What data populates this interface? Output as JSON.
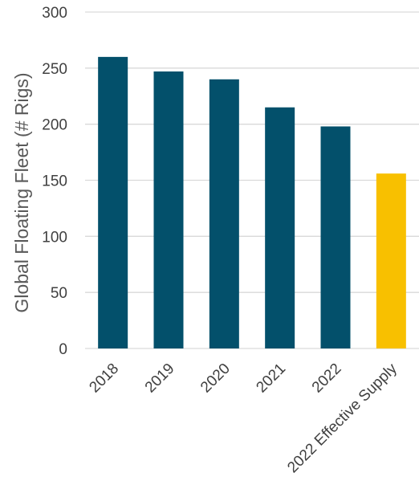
{
  "chart_data": {
    "type": "bar",
    "title": "",
    "xlabel": "",
    "ylabel": "Global Floating Fleet (# Rigs)",
    "categories": [
      "2018",
      "2019",
      "2020",
      "2021",
      "2022",
      "2022 Effective Supply"
    ],
    "values": [
      260,
      247,
      240,
      215,
      198,
      156
    ],
    "bar_colors": [
      "#03506b",
      "#03506b",
      "#03506b",
      "#03506b",
      "#03506b",
      "#f8c000"
    ],
    "ylim": [
      0,
      300
    ],
    "yticks": [
      0,
      50,
      100,
      150,
      200,
      250,
      300
    ],
    "grid": true,
    "legend": "none"
  }
}
